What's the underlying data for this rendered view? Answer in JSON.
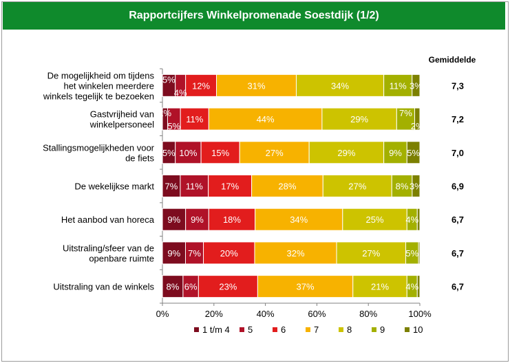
{
  "title": "Rapportcijfers Winkelpromenade Soestdijk (1/2)",
  "chart_data": {
    "type": "bar",
    "orientation": "horizontal-stacked-100",
    "title": "Rapportcijfers Winkelpromenade Soestdijk (1/2)",
    "categories": [
      "De mogelijkheid om tijdens het winkelen meerdere winkels tegelijk te bezoeken",
      "Gastvrijheid van winkelpersoneel",
      "Stallingsmogelijkheden voor de fiets",
      "De wekelijkse markt",
      "Het aanbod van horeca",
      "Uitstraling/sfeer van de openbare ruimte",
      "Uitstraling van de winkels"
    ],
    "series": [
      {
        "name": "1 t/m 4",
        "color": "#7d0c1f",
        "values": [
          5,
          2,
          5,
          7,
          9,
          9,
          8
        ]
      },
      {
        "name": "5",
        "color": "#b01228",
        "values": [
          4,
          5,
          10,
          11,
          9,
          7,
          6
        ]
      },
      {
        "name": "6",
        "color": "#e21d1d",
        "values": [
          12,
          11,
          15,
          17,
          18,
          20,
          23
        ]
      },
      {
        "name": "7",
        "color": "#f7b200",
        "values": [
          31,
          44,
          27,
          28,
          34,
          32,
          37
        ]
      },
      {
        "name": "8",
        "color": "#cdc300",
        "values": [
          34,
          29,
          29,
          27,
          25,
          27,
          21
        ]
      },
      {
        "name": "9",
        "color": "#a3b000",
        "values": [
          11,
          7,
          9,
          8,
          4,
          5,
          4
        ]
      },
      {
        "name": "10",
        "color": "#7c8000",
        "values": [
          3,
          2,
          5,
          3,
          1,
          0.5,
          1
        ]
      }
    ],
    "average_header": "Gemiddelde",
    "averages": [
      "7,3",
      "7,2",
      "7,0",
      "6,9",
      "6,7",
      "6,7",
      "6,7"
    ],
    "xticks": [
      "0%",
      "20%",
      "40%",
      "60%",
      "80%",
      "100%"
    ],
    "xlim": [
      0,
      100
    ],
    "legend": "bottom"
  }
}
